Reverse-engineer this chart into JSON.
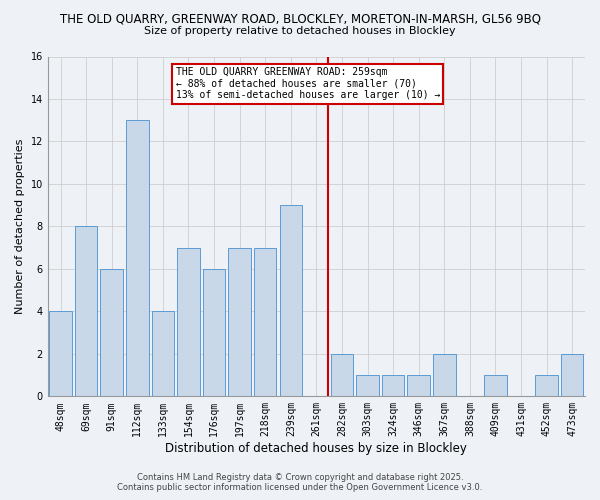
{
  "title_line1": "THE OLD QUARRY, GREENWAY ROAD, BLOCKLEY, MORETON-IN-MARSH, GL56 9BQ",
  "title_line2": "Size of property relative to detached houses in Blockley",
  "xlabel": "Distribution of detached houses by size in Blockley",
  "ylabel": "Number of detached properties",
  "bar_labels": [
    "48sqm",
    "69sqm",
    "91sqm",
    "112sqm",
    "133sqm",
    "154sqm",
    "176sqm",
    "197sqm",
    "218sqm",
    "239sqm",
    "261sqm",
    "282sqm",
    "303sqm",
    "324sqm",
    "346sqm",
    "367sqm",
    "388sqm",
    "409sqm",
    "431sqm",
    "452sqm",
    "473sqm"
  ],
  "bar_values": [
    4,
    8,
    6,
    13,
    4,
    7,
    6,
    7,
    7,
    9,
    0,
    2,
    1,
    1,
    1,
    2,
    0,
    1,
    0,
    1,
    2
  ],
  "bar_color_fill": "#c8d8e8",
  "bar_color_edge": "#5b9bd5",
  "vline_x_index": 10,
  "vline_color": "#cc0000",
  "annotation_text": "THE OLD QUARRY GREENWAY ROAD: 259sqm\n← 88% of detached houses are smaller (70)\n13% of semi-detached houses are larger (10) →",
  "annotation_box_color": "#ffffff",
  "annotation_box_edge": "#cc0000",
  "ylim": [
    0,
    16
  ],
  "yticks": [
    0,
    2,
    4,
    6,
    8,
    10,
    12,
    14,
    16
  ],
  "background_color": "#eef2f7",
  "grid_color": "#c8c8c8",
  "footer_line1": "Contains HM Land Registry data © Crown copyright and database right 2025.",
  "footer_line2": "Contains public sector information licensed under the Open Government Licence v3.0."
}
